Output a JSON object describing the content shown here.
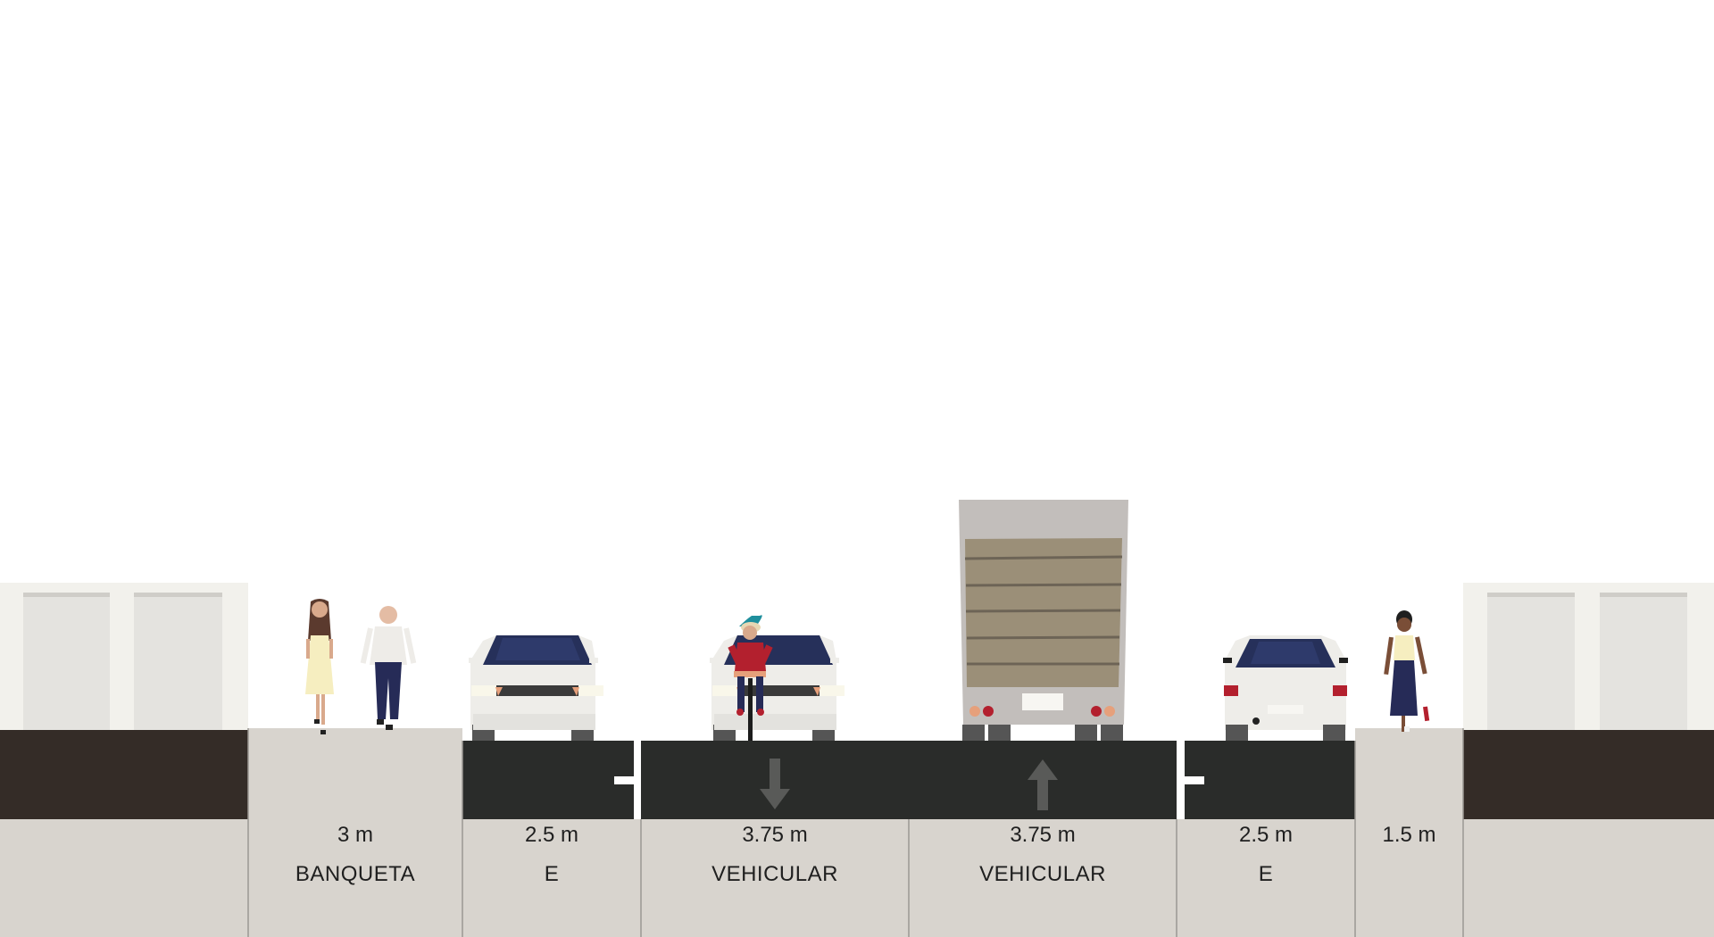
{
  "segments": [
    {
      "width": "3 m",
      "name": "BANQUETA"
    },
    {
      "width": "2.5 m",
      "name": "E"
    },
    {
      "width": "3.75 m",
      "name": "VEHICULAR",
      "direction": "down"
    },
    {
      "width": "3.75 m",
      "name": "VEHICULAR",
      "direction": "up"
    },
    {
      "width": "2.5 m",
      "name": "E"
    },
    {
      "width": "1.5 m",
      "name": ""
    }
  ],
  "colors": {
    "sky": "#ffffff",
    "building_wall": "#f2f1ec",
    "building_door": "#e4e3df",
    "building_base": "#342c27",
    "ground": "#d8d4ce",
    "asphalt": "#2a2c2a",
    "lane_marking": "#ffffff",
    "direction_arrow": "#595a58",
    "car_body": "#eeede9",
    "car_window": "#26305a",
    "truck_box": "#c2bebb",
    "truck_panel": "#9b8f78"
  },
  "icons": [
    "building",
    "pedestrian",
    "car-front-icon",
    "car-rear-icon",
    "cyclist-icon",
    "truck-rear-icon",
    "arrow-down-icon",
    "arrow-up-icon"
  ]
}
